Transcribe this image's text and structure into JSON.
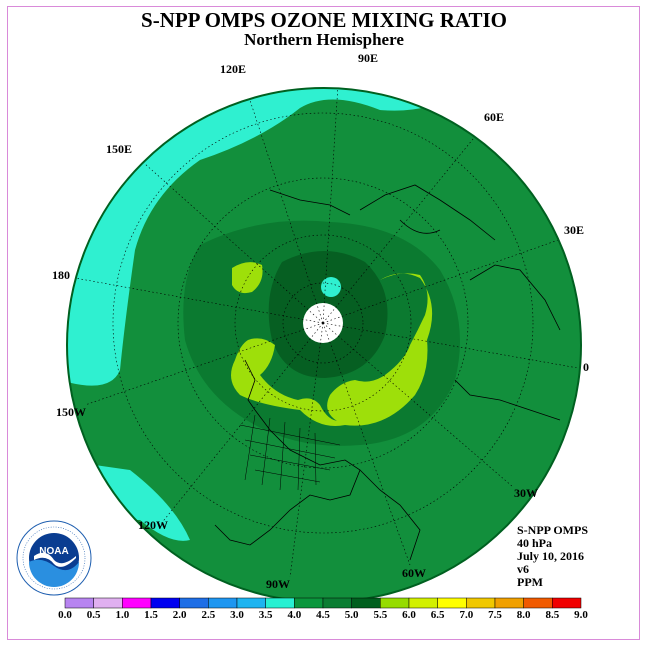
{
  "title": "S-NPP OMPS OZONE MIXING RATIO",
  "subtitle": "Northern Hemisphere",
  "longitude_labels": [
    "90E",
    "60E",
    "30E",
    "0",
    "30W",
    "60W",
    "90W",
    "120W",
    "150W",
    "180",
    "150E",
    "120E"
  ],
  "info": {
    "instrument": "S-NPP OMPS",
    "level": "40 hPa",
    "date": "July 10, 2016",
    "version": "v6",
    "units": "PPM"
  },
  "colorbar": {
    "tick_labels": [
      "0.0",
      "0.5",
      "1.0",
      "1.5",
      "2.0",
      "2.5",
      "3.0",
      "3.5",
      "4.0",
      "4.5",
      "5.0",
      "5.5",
      "6.0",
      "6.5",
      "7.0",
      "7.5",
      "8.0",
      "8.5",
      "9.0"
    ],
    "colors": [
      "#b784f0",
      "#e0b0f0",
      "#ff00ff",
      "#0000f0",
      "#1e6ee6",
      "#1e96f0",
      "#1eb4f0",
      "#28f0d2",
      "#0a963c",
      "#0a7d32",
      "#005f1e",
      "#96dc00",
      "#d2f000",
      "#ffff00",
      "#f0c800",
      "#f0a000",
      "#f05a00",
      "#f00000",
      "#8c5a3c"
    ]
  },
  "map_colors": {
    "land_ocean_bg": "#128f3c",
    "band_4_0_4_5": "#0b7a30",
    "band_5_5_6_0": "#9edf0a",
    "band_3_5_4_0": "#2ff0d0",
    "no_data": "#ffffff"
  },
  "logo_text": "NOAA"
}
